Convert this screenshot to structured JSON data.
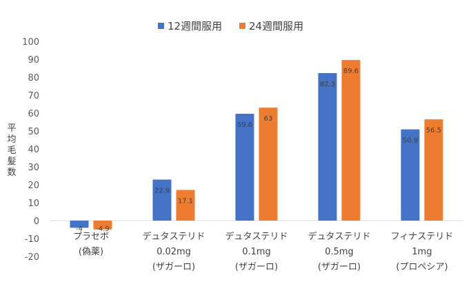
{
  "chart_data": {
    "type": "bar",
    "categories": [
      [
        "プラセボ",
        "(偽薬)"
      ],
      [
        "デュタステリド",
        "0.02mg",
        "(ザガーロ)"
      ],
      [
        "デュタステリド",
        "0.1mg",
        "(ザガーロ)"
      ],
      [
        "デュタステリド",
        "0.5mg",
        "(ザガーロ)"
      ],
      [
        "フィナステリド",
        "1mg",
        "(プロペシア)"
      ]
    ],
    "series": [
      {
        "name": "12週間服用",
        "values": [
          -4,
          22.9,
          59.6,
          82.3,
          50.9
        ],
        "labels": [
          "-4",
          "22.9",
          "59.6",
          "82.3",
          "50.9"
        ],
        "color": "#4472C4"
      },
      {
        "name": "24週間服用",
        "values": [
          -4.9,
          17.1,
          63,
          89.6,
          56.5
        ],
        "labels": [
          "-4.9",
          "17.1",
          "63",
          "89.6",
          "56.5"
        ],
        "color": "#ED7D31"
      }
    ],
    "ylabel": "平均毛髪数",
    "ylim": [
      -20,
      100
    ],
    "yticks": [
      -20,
      -10,
      0,
      10,
      20,
      30,
      40,
      50,
      60,
      70,
      80,
      90,
      100
    ],
    "grid": false,
    "legend": "top"
  }
}
